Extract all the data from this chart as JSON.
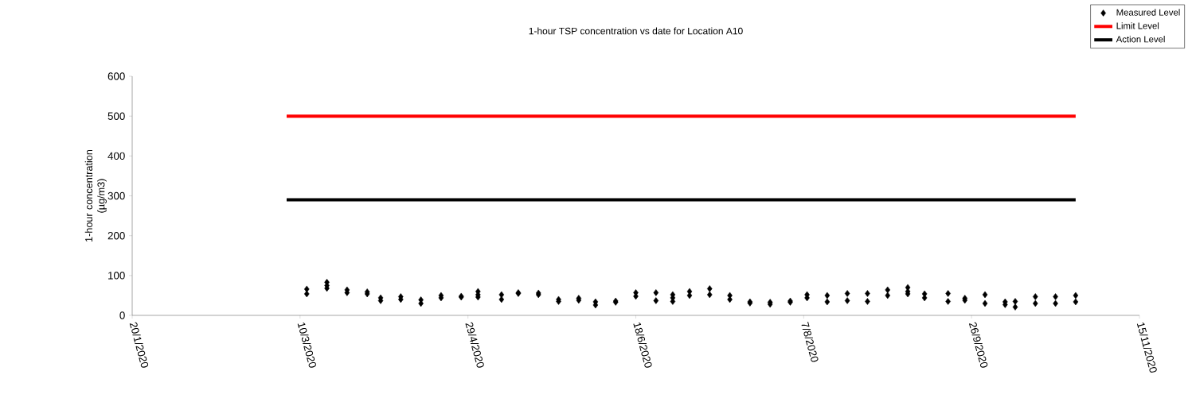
{
  "chart_data": {
    "type": "scatter",
    "title": "1-hour TSP concentration vs date for Location A10",
    "ylabel": "1-hour concentration (µg/m3)",
    "xlim": [
      "2020-01-20",
      "2020-11-15"
    ],
    "ylim": [
      0,
      600
    ],
    "yticks": [
      0,
      100,
      200,
      300,
      400,
      500,
      600
    ],
    "xticks": [
      {
        "value": "2020-01-20",
        "label": "20/1/2020"
      },
      {
        "value": "2020-03-10",
        "label": "10/3/2020"
      },
      {
        "value": "2020-04-29",
        "label": "29/4/2020"
      },
      {
        "value": "2020-06-18",
        "label": "18/6/2020"
      },
      {
        "value": "2020-08-07",
        "label": "7/8/2020"
      },
      {
        "value": "2020-09-26",
        "label": "26/9/2020"
      },
      {
        "value": "2020-11-15",
        "label": "15/11/2020"
      }
    ],
    "legend": "top right",
    "grid": false,
    "series": [
      {
        "name": "Measured Level",
        "marker": "diamond",
        "color": "#000000",
        "x": [
          "2020-03-12",
          "2020-03-12",
          "2020-03-18",
          "2020-03-18",
          "2020-03-18",
          "2020-03-24",
          "2020-03-24",
          "2020-03-30",
          "2020-03-30",
          "2020-04-03",
          "2020-04-03",
          "2020-04-09",
          "2020-04-09",
          "2020-04-15",
          "2020-04-15",
          "2020-04-21",
          "2020-04-21",
          "2020-04-27",
          "2020-04-27",
          "2020-05-02",
          "2020-05-02",
          "2020-05-02",
          "2020-05-09",
          "2020-05-09",
          "2020-05-14",
          "2020-05-14",
          "2020-05-20",
          "2020-05-20",
          "2020-05-26",
          "2020-05-26",
          "2020-06-01",
          "2020-06-01",
          "2020-06-06",
          "2020-06-06",
          "2020-06-12",
          "2020-06-12",
          "2020-06-18",
          "2020-06-18",
          "2020-06-24",
          "2020-06-24",
          "2020-06-29",
          "2020-06-29",
          "2020-06-29",
          "2020-07-04",
          "2020-07-04",
          "2020-07-10",
          "2020-07-10",
          "2020-07-16",
          "2020-07-16",
          "2020-07-22",
          "2020-07-22",
          "2020-07-28",
          "2020-07-28",
          "2020-08-03",
          "2020-08-03",
          "2020-08-08",
          "2020-08-08",
          "2020-08-14",
          "2020-08-14",
          "2020-08-20",
          "2020-08-20",
          "2020-08-26",
          "2020-08-26",
          "2020-09-01",
          "2020-09-01",
          "2020-09-07",
          "2020-09-07",
          "2020-09-07",
          "2020-09-12",
          "2020-09-12",
          "2020-09-19",
          "2020-09-19",
          "2020-09-24",
          "2020-09-24",
          "2020-09-30",
          "2020-09-30",
          "2020-10-06",
          "2020-10-06",
          "2020-10-09",
          "2020-10-09",
          "2020-10-15",
          "2020-10-15",
          "2020-10-21",
          "2020-10-21",
          "2020-10-27",
          "2020-10-27"
        ],
        "values": [
          66,
          54,
          83,
          75,
          68,
          64,
          57,
          59,
          54,
          44,
          37,
          47,
          40,
          39,
          30,
          50,
          44,
          48,
          46,
          60,
          52,
          46,
          52,
          40,
          57,
          55,
          56,
          52,
          40,
          35,
          43,
          38,
          34,
          26,
          36,
          33,
          57,
          48,
          57,
          37,
          52,
          44,
          35,
          60,
          50,
          67,
          52,
          50,
          40,
          34,
          31,
          33,
          28,
          36,
          33,
          52,
          44,
          50,
          34,
          55,
          37,
          55,
          35,
          64,
          50,
          70,
          60,
          54,
          54,
          44,
          55,
          35,
          43,
          38,
          52,
          30,
          34,
          27,
          35,
          21,
          47,
          30,
          47,
          30,
          50,
          34
        ]
      },
      {
        "name": "Limit Level",
        "type": "line",
        "color": "#ff0000",
        "x": [
          "2020-03-06",
          "2020-10-27"
        ],
        "values": [
          500,
          500
        ]
      },
      {
        "name": "Action Level",
        "type": "line",
        "color": "#000000",
        "x": [
          "2020-03-06",
          "2020-10-27"
        ],
        "values": [
          290,
          290
        ]
      }
    ]
  }
}
